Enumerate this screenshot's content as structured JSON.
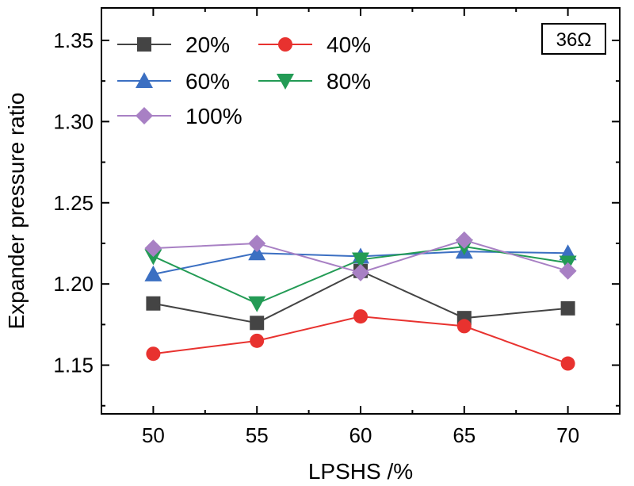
{
  "chart_data": {
    "type": "line",
    "title": "",
    "xlabel": "LPSHS /%",
    "ylabel": "Expander pressure ratio",
    "x": [
      50,
      55,
      60,
      65,
      70
    ],
    "x_tick_labels": [
      "50",
      "55",
      "60",
      "65",
      "70"
    ],
    "xlim": [
      47.5,
      72.5
    ],
    "ylim": [
      1.12,
      1.37
    ],
    "y_ticks": [
      1.15,
      1.2,
      1.25,
      1.3,
      1.35
    ],
    "y_tick_labels": [
      "1.15",
      "1.20",
      "1.25",
      "1.30",
      "1.35"
    ],
    "grid": false,
    "legend_position": "top-left",
    "annotation": "36Ω",
    "series": [
      {
        "name": "20%",
        "color": "#444444",
        "marker": "square",
        "values": [
          1.188,
          1.176,
          1.208,
          1.179,
          1.185
        ]
      },
      {
        "name": "40%",
        "color": "#e8322f",
        "marker": "circle",
        "values": [
          1.157,
          1.165,
          1.18,
          1.174,
          1.151
        ]
      },
      {
        "name": "60%",
        "color": "#3b6fc2",
        "marker": "triangle-up",
        "values": [
          1.206,
          1.219,
          1.217,
          1.22,
          1.219
        ]
      },
      {
        "name": "80%",
        "color": "#239b55",
        "marker": "triangle-down",
        "values": [
          1.217,
          1.188,
          1.215,
          1.223,
          1.213
        ]
      },
      {
        "name": "100%",
        "color": "#a880c4",
        "marker": "diamond",
        "values": [
          1.222,
          1.225,
          1.207,
          1.227,
          1.208
        ]
      }
    ]
  }
}
